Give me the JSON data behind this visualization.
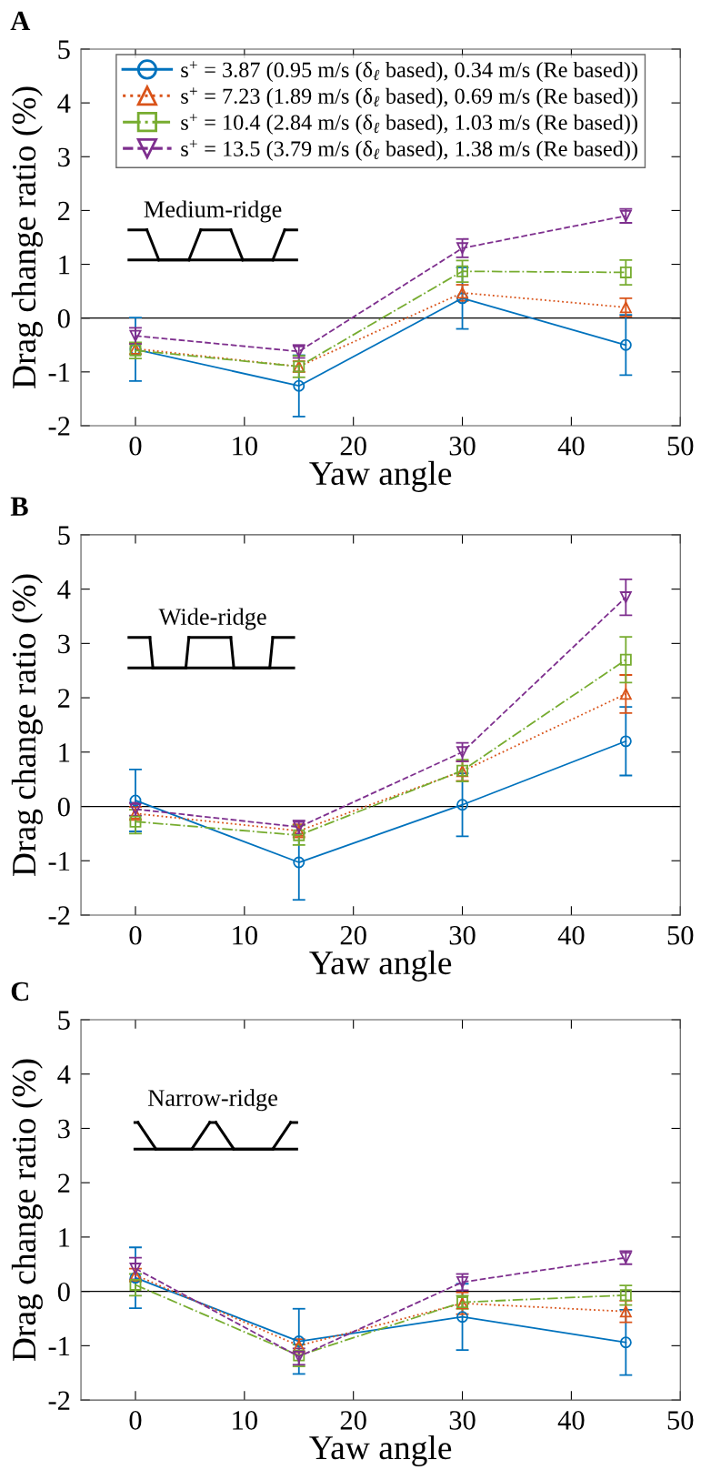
{
  "chart_data": [
    {
      "type": "line",
      "title": "A",
      "xlabel": "Yaw angle",
      "ylabel": "Drag change ratio (%)",
      "x": [
        0,
        15,
        30,
        45
      ],
      "xlim": [
        -5,
        50
      ],
      "ylim": [
        -2,
        5
      ],
      "xticks": [
        0,
        10,
        20,
        30,
        40,
        50
      ],
      "yticks": [
        -2,
        -1,
        0,
        1,
        2,
        3,
        4,
        5
      ],
      "legend": "top",
      "grid": false,
      "annotations": [
        "Medium-ridge"
      ],
      "ref_lines": [
        {
          "axis": "y",
          "value": 0,
          "color": "#000000"
        }
      ],
      "series": [
        {
          "name": "s$^{+}$ = 3.87 (0.95 m/s (δ$_{ℓ}$ based), 0.34 m/s (Re based))",
          "color": "#0072bd",
          "marker": "circle",
          "line_style": "solid",
          "values": [
            -0.58,
            -1.26,
            0.37,
            -0.5
          ],
          "errors": [
            0.59,
            0.57,
            0.57,
            0.56
          ]
        },
        {
          "name": "s$^{+}$ = 7.23 (1.89 m/s (δ$_{ℓ}$ based), 0.69 m/s (Re based))",
          "color": "#d95319",
          "marker": "triangle",
          "line_style": "dotted",
          "values": [
            -0.57,
            -0.9,
            0.47,
            0.2
          ],
          "errors": [
            0.1,
            0.1,
            0.15,
            0.17
          ]
        },
        {
          "name": "s$^{+}$ = 10.4 (2.84 m/s (δ$_{ℓ}$ based), 1.03 m/s (Re based))",
          "color": "#77ac30",
          "marker": "square",
          "line_style": "dashdot",
          "values": [
            -0.6,
            -0.9,
            0.87,
            0.85
          ],
          "errors": [
            0.15,
            0.2,
            0.2,
            0.23
          ]
        },
        {
          "name": "s$^{+}$ = 13.5 (3.79 m/s (δ$_{ℓ}$ based), 1.38 m/s (Re based))",
          "color": "#7e2f8e",
          "marker": "triangle_down",
          "line_style": "dashed",
          "values": [
            -0.33,
            -0.62,
            1.3,
            1.9
          ],
          "errors": [
            0.15,
            0.12,
            0.17,
            0.13
          ]
        }
      ]
    },
    {
      "type": "line",
      "title": "B",
      "xlabel": "Yaw angle",
      "ylabel": "Drag change ratio (%)",
      "x": [
        0,
        15,
        30,
        45
      ],
      "xlim": [
        -5,
        50
      ],
      "ylim": [
        -2,
        5
      ],
      "xticks": [
        0,
        10,
        20,
        30,
        40,
        50
      ],
      "yticks": [
        -2,
        -1,
        0,
        1,
        2,
        3,
        4,
        5
      ],
      "grid": false,
      "annotations": [
        "Wide-ridge"
      ],
      "ref_lines": [
        {
          "axis": "y",
          "value": 0,
          "color": "#000000"
        }
      ],
      "series": [
        {
          "color": "#0072bd",
          "marker": "circle",
          "line_style": "solid",
          "values": [
            0.11,
            -1.03,
            0.03,
            1.2
          ],
          "errors": [
            0.57,
            0.69,
            0.58,
            0.63
          ]
        },
        {
          "color": "#d95319",
          "marker": "triangle",
          "line_style": "dotted",
          "values": [
            -0.13,
            -0.45,
            0.65,
            2.07
          ],
          "errors": [
            0.12,
            0.12,
            0.18,
            0.35
          ]
        },
        {
          "color": "#77ac30",
          "marker": "square",
          "line_style": "dashdot",
          "values": [
            -0.28,
            -0.53,
            0.66,
            2.7
          ],
          "errors": [
            0.22,
            0.18,
            0.2,
            0.42
          ]
        },
        {
          "color": "#7e2f8e",
          "marker": "triangle_down",
          "line_style": "dashed",
          "values": [
            -0.05,
            -0.38,
            1.0,
            3.85
          ],
          "errors": [
            0.12,
            0.12,
            0.17,
            0.33
          ]
        }
      ]
    },
    {
      "type": "line",
      "title": "C",
      "xlabel": "Yaw angle",
      "ylabel": "Drag change ratio (%)",
      "x": [
        0,
        15,
        30,
        45
      ],
      "xlim": [
        -5,
        50
      ],
      "ylim": [
        -2,
        5
      ],
      "xticks": [
        0,
        10,
        20,
        30,
        40,
        50
      ],
      "yticks": [
        -2,
        -1,
        0,
        1,
        2,
        3,
        4,
        5
      ],
      "grid": false,
      "annotations": [
        "Narrow-ridge"
      ],
      "ref_lines": [
        {
          "axis": "y",
          "value": 0,
          "color": "#000000"
        }
      ],
      "series": [
        {
          "color": "#0072bd",
          "marker": "circle",
          "line_style": "solid",
          "values": [
            0.25,
            -0.92,
            -0.47,
            -0.94
          ],
          "errors": [
            0.56,
            0.6,
            0.61,
            0.6
          ]
        },
        {
          "color": "#d95319",
          "marker": "triangle",
          "line_style": "dotted",
          "values": [
            0.3,
            -1.0,
            -0.22,
            -0.37
          ],
          "errors": [
            0.12,
            0.12,
            0.2,
            0.2
          ]
        },
        {
          "color": "#77ac30",
          "marker": "square",
          "line_style": "dashdot",
          "values": [
            0.12,
            -1.18,
            -0.2,
            -0.07
          ],
          "errors": [
            0.2,
            0.2,
            0.12,
            0.18
          ]
        },
        {
          "color": "#7e2f8e",
          "marker": "triangle_down",
          "line_style": "dashed",
          "values": [
            0.42,
            -1.2,
            0.17,
            0.62
          ],
          "errors": [
            0.2,
            0.15,
            0.15,
            0.12
          ]
        }
      ]
    }
  ]
}
